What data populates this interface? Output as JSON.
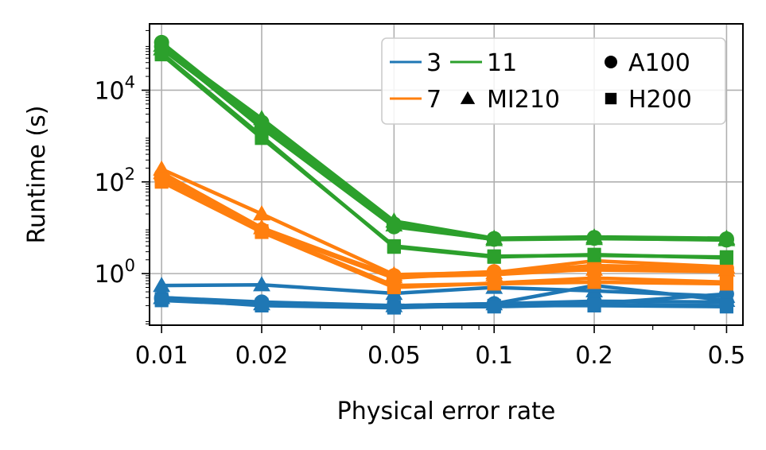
{
  "chart_data": {
    "type": "line",
    "xlabel": "Physical error rate",
    "ylabel": "Runtime (s)",
    "x_scale": "log",
    "y_scale": "log",
    "x": [
      0.01,
      0.02,
      0.05,
      0.1,
      0.2,
      0.5
    ],
    "x_tick_labels": [
      "0.01",
      "0.02",
      "0.05",
      "0.1",
      "0.2",
      "0.5"
    ],
    "xlim": [
      0.0092,
      0.56
    ],
    "ylim": [
      0.075,
      280000
    ],
    "y_ticks": [
      {
        "value": 1,
        "base": "10",
        "exp": "0"
      },
      {
        "value": 100,
        "base": "10",
        "exp": "2"
      },
      {
        "value": 10000,
        "base": "10",
        "exp": "4"
      }
    ],
    "grid": true,
    "legend": {
      "placement": "top-right",
      "distance_entries": [
        {
          "label": "3",
          "color": "#1f77b4"
        },
        {
          "label": "7",
          "color": "#ff7f0e"
        },
        {
          "label": "11",
          "color": "#2ca02c"
        }
      ],
      "gpu_entries": [
        {
          "label": "A100",
          "marker": "circle"
        },
        {
          "label": "MI210",
          "marker": "triangle"
        },
        {
          "label": "H200",
          "marker": "square"
        }
      ]
    },
    "series": [
      {
        "distance": "3",
        "gpu": "A100",
        "color": "#1f77b4",
        "marker": "circle",
        "values": [
          0.3,
          0.24,
          0.2,
          0.22,
          0.25,
          0.24
        ]
      },
      {
        "distance": "3",
        "gpu": "A100",
        "color": "#1f77b4",
        "marker": "circle",
        "values": [
          0.28,
          0.22,
          0.19,
          0.21,
          0.22,
          0.36
        ]
      },
      {
        "distance": "3",
        "gpu": "MI210",
        "color": "#1f77b4",
        "marker": "triangle",
        "values": [
          0.55,
          0.57,
          0.37,
          0.5,
          0.42,
          0.32
        ]
      },
      {
        "distance": "3",
        "gpu": "MI210",
        "color": "#1f77b4",
        "marker": "triangle",
        "values": [
          0.3,
          0.22,
          0.2,
          0.22,
          0.55,
          0.26
        ]
      },
      {
        "distance": "3",
        "gpu": "H200",
        "color": "#1f77b4",
        "marker": "square",
        "values": [
          0.28,
          0.2,
          0.18,
          0.2,
          0.2,
          0.19
        ]
      },
      {
        "distance": "3",
        "gpu": "H200",
        "color": "#1f77b4",
        "marker": "square",
        "values": [
          0.26,
          0.21,
          0.19,
          0.19,
          0.21,
          0.2
        ]
      },
      {
        "distance": "7",
        "gpu": "A100",
        "color": "#ff7f0e",
        "marker": "circle",
        "values": [
          140,
          9,
          0.9,
          1.1,
          1.2,
          1.1
        ]
      },
      {
        "distance": "7",
        "gpu": "A100",
        "color": "#ff7f0e",
        "marker": "circle",
        "values": [
          120,
          9,
          0.8,
          1.05,
          1.5,
          1.3
        ]
      },
      {
        "distance": "7",
        "gpu": "MI210",
        "color": "#ff7f0e",
        "marker": "triangle",
        "values": [
          190,
          20,
          0.95,
          1.05,
          1.9,
          1.4
        ]
      },
      {
        "distance": "7",
        "gpu": "MI210",
        "color": "#ff7f0e",
        "marker": "triangle",
        "values": [
          160,
          10,
          0.85,
          0.95,
          1.25,
          1.2
        ]
      },
      {
        "distance": "7",
        "gpu": "H200",
        "color": "#ff7f0e",
        "marker": "square",
        "values": [
          110,
          8.5,
          0.55,
          0.6,
          0.65,
          0.6
        ]
      },
      {
        "distance": "7",
        "gpu": "H200",
        "color": "#ff7f0e",
        "marker": "square",
        "values": [
          100,
          8,
          0.5,
          0.62,
          0.8,
          0.65
        ]
      },
      {
        "distance": "11",
        "gpu": "A100",
        "color": "#2ca02c",
        "marker": "circle",
        "values": [
          110000,
          2000,
          12,
          5.8,
          6.1,
          5.7
        ]
      },
      {
        "distance": "11",
        "gpu": "A100",
        "color": "#2ca02c",
        "marker": "circle",
        "values": [
          90000,
          1500,
          10.5,
          5.6,
          5.9,
          5.4
        ]
      },
      {
        "distance": "11",
        "gpu": "MI210",
        "color": "#2ca02c",
        "marker": "triangle",
        "values": [
          95000,
          2400,
          14,
          5.9,
          6.3,
          5.9
        ]
      },
      {
        "distance": "11",
        "gpu": "MI210",
        "color": "#2ca02c",
        "marker": "triangle",
        "values": [
          80000,
          1800,
          11.5,
          5.5,
          5.8,
          5.5
        ]
      },
      {
        "distance": "11",
        "gpu": "H200",
        "color": "#2ca02c",
        "marker": "square",
        "values": [
          60000,
          900,
          4,
          2.4,
          2.5,
          2.3
        ]
      },
      {
        "distance": "11",
        "gpu": "H200",
        "color": "#2ca02c",
        "marker": "square",
        "values": [
          65000,
          1000,
          3.8,
          2.3,
          2.6,
          2.2
        ]
      }
    ]
  }
}
